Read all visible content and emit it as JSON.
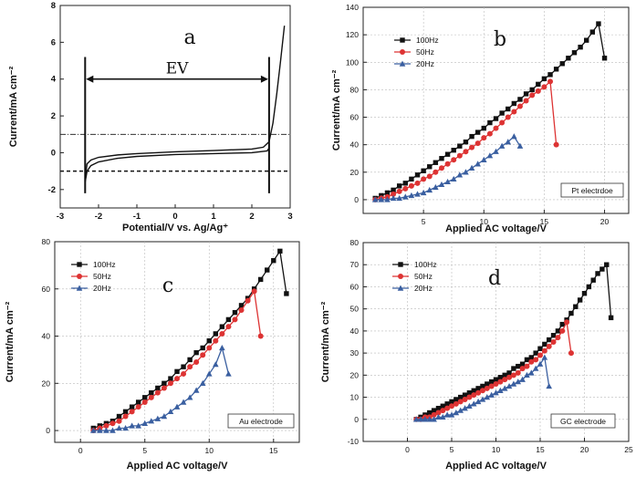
{
  "chart_data": [
    {
      "id": "a",
      "type": "line",
      "panel_label": "a",
      "xlabel": "Potential/V vs. Ag/Ag⁺",
      "ylabel": "Current/mA cm⁻²",
      "xlim": [
        -3,
        3
      ],
      "ylim": [
        -3,
        8
      ],
      "xticks": [
        -3,
        -2,
        -1,
        0,
        1,
        2,
        3
      ],
      "yticks": [
        -2,
        0,
        2,
        4,
        6,
        8
      ],
      "grid": false,
      "annotations": [
        {
          "text": "EV",
          "from_x": -2.35,
          "to_x": 2.45,
          "y": 4
        }
      ],
      "reference_lines": [
        {
          "style": "dashdot",
          "y": 1
        },
        {
          "style": "dashed",
          "y": -1
        }
      ],
      "series": [
        {
          "name": "forward scan",
          "x": [
            -2.35,
            -2.3,
            -2.2,
            -2.0,
            -1.5,
            -1.0,
            0.0,
            1.0,
            2.0,
            2.3,
            2.45,
            2.55,
            2.65,
            2.75,
            2.85
          ],
          "y": [
            -1.4,
            -0.6,
            -0.4,
            -0.25,
            -0.12,
            -0.05,
            0.05,
            0.12,
            0.2,
            0.3,
            0.6,
            1.6,
            3.2,
            5.0,
            6.9
          ]
        },
        {
          "name": "reverse scan",
          "x": [
            2.45,
            2.4,
            2.0,
            1.0,
            0.0,
            -1.0,
            -1.5,
            -2.0,
            -2.2,
            -2.3,
            -2.35
          ],
          "y": [
            0.25,
            0.1,
            0.0,
            -0.05,
            -0.1,
            -0.2,
            -0.3,
            -0.5,
            -0.7,
            -1.0,
            -1.6
          ]
        }
      ]
    },
    {
      "id": "b",
      "type": "line",
      "panel_label": "b",
      "xlabel": "Applied AC voltage/V",
      "ylabel": "Current/mA cm⁻²",
      "xlim": [
        0,
        22
      ],
      "ylim": [
        -10,
        140
      ],
      "xticks": [
        5,
        10,
        15,
        20
      ],
      "yticks": [
        0,
        20,
        40,
        60,
        80,
        100,
        120,
        140
      ],
      "grid": true,
      "legend": "top-left",
      "note": "Pt electrdoe",
      "series": [
        {
          "name": "100Hz",
          "color": "#111111",
          "marker": "square",
          "x": [
            1,
            1.5,
            2,
            2.5,
            3,
            3.5,
            4,
            4.5,
            5,
            5.5,
            6,
            6.5,
            7,
            7.5,
            8,
            8.5,
            9,
            9.5,
            10,
            10.5,
            11,
            11.5,
            12,
            12.5,
            13,
            13.5,
            14,
            14.5,
            15,
            15.5,
            16,
            16.5,
            17,
            17.5,
            18,
            18.5,
            19,
            19.5,
            20
          ],
          "y": [
            1,
            3,
            5,
            7,
            10,
            12,
            15,
            18,
            21,
            24,
            27,
            30,
            33,
            36,
            39,
            42,
            46,
            49,
            52,
            56,
            59,
            63,
            66,
            70,
            73,
            77,
            80,
            84,
            88,
            91,
            95,
            99,
            103,
            107,
            111,
            116,
            122,
            128,
            103
          ]
        },
        {
          "name": "50Hz",
          "color": "#dd3333",
          "marker": "circle",
          "x": [
            1,
            1.5,
            2,
            2.5,
            3,
            3.5,
            4,
            4.5,
            5,
            5.5,
            6,
            6.5,
            7,
            7.5,
            8,
            8.5,
            9,
            9.5,
            10,
            10.5,
            11,
            11.5,
            12,
            12.5,
            13,
            13.5,
            14,
            14.5,
            15,
            15.5,
            16
          ],
          "y": [
            0,
            1,
            2,
            4,
            6,
            8,
            10,
            12,
            15,
            17,
            20,
            23,
            26,
            29,
            32,
            35,
            38,
            41,
            45,
            48,
            52,
            56,
            60,
            64,
            68,
            72,
            76,
            79,
            82,
            86,
            40
          ]
        },
        {
          "name": "20Hz",
          "color": "#3a5fa0",
          "marker": "triangle",
          "x": [
            1,
            1.5,
            2,
            2.5,
            3,
            3.5,
            4,
            4.5,
            5,
            5.5,
            6,
            6.5,
            7,
            7.5,
            8,
            8.5,
            9,
            9.5,
            10,
            10.5,
            11,
            11.5,
            12,
            12.5,
            13
          ],
          "y": [
            0,
            0,
            0,
            1,
            1,
            2,
            3,
            4,
            5,
            7,
            9,
            11,
            13,
            15,
            18,
            20,
            23,
            26,
            29,
            32,
            35,
            39,
            42,
            46,
            39
          ]
        }
      ]
    },
    {
      "id": "c",
      "type": "line",
      "panel_label": "c",
      "xlabel": "Applied AC voltage/V",
      "ylabel": "Current/mA cm⁻²",
      "xlim": [
        -2,
        17
      ],
      "ylim": [
        -5,
        80
      ],
      "xticks": [
        0,
        5,
        10,
        15
      ],
      "yticks": [
        0,
        20,
        40,
        60,
        80
      ],
      "grid": true,
      "legend": "top-left",
      "note": "Au electrode",
      "series": [
        {
          "name": "100Hz",
          "color": "#111111",
          "marker": "square",
          "x": [
            1,
            1.5,
            2,
            2.5,
            3,
            3.5,
            4,
            4.5,
            5,
            5.5,
            6,
            6.5,
            7,
            7.5,
            8,
            8.5,
            9,
            9.5,
            10,
            10.5,
            11,
            11.5,
            12,
            12.5,
            13,
            13.5,
            14,
            14.5,
            15,
            15.5,
            16
          ],
          "y": [
            1,
            2,
            3,
            4,
            6,
            8,
            10,
            12,
            14,
            16,
            18,
            20,
            22,
            25,
            27,
            30,
            33,
            35,
            38,
            41,
            44,
            47,
            50,
            53,
            56,
            60,
            64,
            68,
            72,
            76,
            58
          ]
        },
        {
          "name": "50Hz",
          "color": "#dd3333",
          "marker": "circle",
          "x": [
            1,
            1.5,
            2,
            2.5,
            3,
            3.5,
            4,
            4.5,
            5,
            5.5,
            6,
            6.5,
            7,
            7.5,
            8,
            8.5,
            9,
            9.5,
            10,
            10.5,
            11,
            11.5,
            12,
            12.5,
            13,
            13.5,
            14
          ],
          "y": [
            0,
            1,
            2,
            3,
            4,
            6,
            8,
            10,
            12,
            14,
            16,
            18,
            20,
            22,
            24,
            27,
            29,
            32,
            35,
            38,
            41,
            44,
            47,
            51,
            55,
            59,
            40
          ]
        },
        {
          "name": "20Hz",
          "color": "#3a5fa0",
          "marker": "triangle",
          "x": [
            1,
            1.5,
            2,
            2.5,
            3,
            3.5,
            4,
            4.5,
            5,
            5.5,
            6,
            6.5,
            7,
            7.5,
            8,
            8.5,
            9,
            9.5,
            10,
            10.5,
            11,
            11.5
          ],
          "y": [
            0,
            0,
            0,
            0,
            1,
            1,
            2,
            2,
            3,
            4,
            5,
            6,
            8,
            10,
            12,
            14,
            17,
            20,
            24,
            28,
            35,
            24
          ]
        }
      ]
    },
    {
      "id": "d",
      "type": "line",
      "panel_label": "d",
      "xlabel": "Applied AC voltage/V",
      "ylabel": "Current/mA cm⁻²",
      "xlim": [
        -5,
        25
      ],
      "ylim": [
        -10,
        80
      ],
      "xticks": [
        0,
        5,
        10,
        15,
        20,
        25
      ],
      "yticks": [
        -10,
        0,
        10,
        20,
        30,
        40,
        50,
        60,
        70,
        80
      ],
      "grid": true,
      "legend": "top-left",
      "note": "GC electrode",
      "series": [
        {
          "name": "100Hz",
          "color": "#111111",
          "marker": "square",
          "x": [
            1,
            1.5,
            2,
            2.5,
            3,
            3.5,
            4,
            4.5,
            5,
            5.5,
            6,
            6.5,
            7,
            7.5,
            8,
            8.5,
            9,
            9.5,
            10,
            10.5,
            11,
            11.5,
            12,
            12.5,
            13,
            13.5,
            14,
            14.5,
            15,
            15.5,
            16,
            16.5,
            17,
            17.5,
            18,
            18.5,
            19,
            19.5,
            20,
            20.5,
            21,
            21.5,
            22,
            22.5,
            23
          ],
          "y": [
            0,
            1,
            2,
            3,
            4,
            5,
            6,
            7,
            8,
            9,
            10,
            11,
            12,
            13,
            14,
            15,
            16,
            17,
            18,
            19,
            20,
            21,
            23,
            24,
            25,
            27,
            28,
            30,
            32,
            34,
            36,
            38,
            40,
            43,
            45,
            48,
            51,
            54,
            57,
            60,
            63,
            66,
            68,
            70,
            46
          ]
        },
        {
          "name": "50Hz",
          "color": "#dd3333",
          "marker": "circle",
          "x": [
            1,
            1.5,
            2,
            2.5,
            3,
            3.5,
            4,
            4.5,
            5,
            5.5,
            6,
            6.5,
            7,
            7.5,
            8,
            8.5,
            9,
            9.5,
            10,
            10.5,
            11,
            11.5,
            12,
            12.5,
            13,
            13.5,
            14,
            14.5,
            15,
            15.5,
            16,
            16.5,
            17,
            17.5,
            18,
            18.5
          ],
          "y": [
            0,
            0,
            1,
            1,
            2,
            3,
            4,
            5,
            6,
            7,
            8,
            9,
            10,
            11,
            12,
            13,
            14,
            15,
            16,
            17,
            18,
            19,
            20,
            21,
            23,
            24,
            26,
            27,
            29,
            31,
            33,
            35,
            37,
            40,
            44,
            30
          ]
        },
        {
          "name": "20Hz",
          "color": "#3a5fa0",
          "marker": "triangle",
          "x": [
            1,
            1.5,
            2,
            2.5,
            3,
            3.5,
            4,
            4.5,
            5,
            5.5,
            6,
            6.5,
            7,
            7.5,
            8,
            8.5,
            9,
            9.5,
            10,
            10.5,
            11,
            11.5,
            12,
            12.5,
            13,
            13.5,
            14,
            14.5,
            15,
            15.5,
            16
          ],
          "y": [
            0,
            0,
            0,
            0,
            0,
            1,
            1,
            2,
            2,
            3,
            4,
            5,
            6,
            7,
            8,
            9,
            10,
            11,
            12,
            13,
            14,
            15,
            16,
            17,
            18,
            20,
            21,
            23,
            25,
            28,
            15
          ]
        }
      ]
    }
  ]
}
